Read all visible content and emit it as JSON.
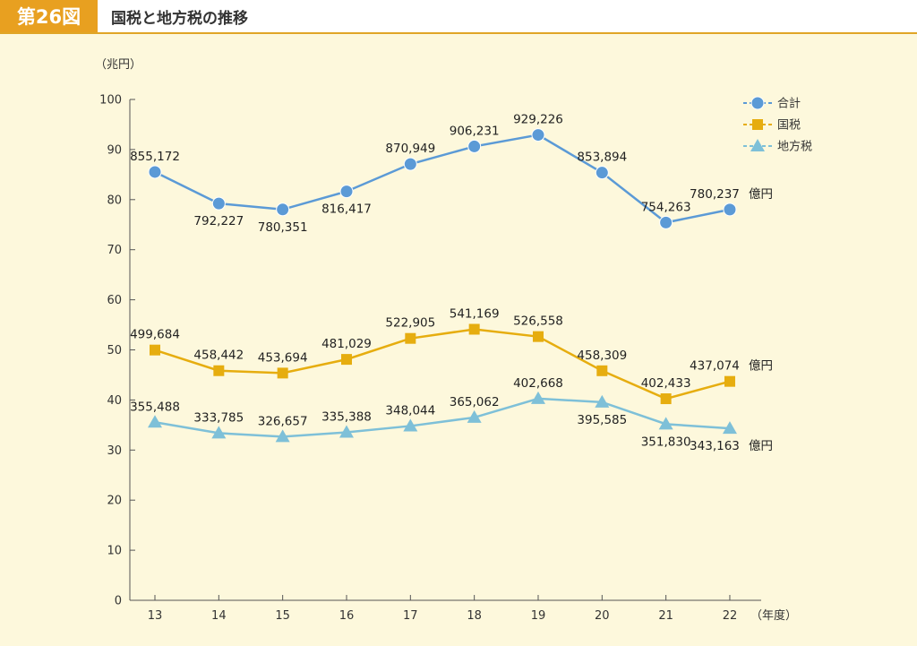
{
  "header": {
    "figure_number": "第26図",
    "title": "国税と地方税の推移"
  },
  "chart_data": {
    "type": "line",
    "title": "国税と地方税の推移",
    "ylabel": "（兆円）",
    "xlabel": "（年度）",
    "ylim": [
      0,
      100
    ],
    "yticks": [
      0,
      10,
      20,
      30,
      40,
      50,
      60,
      70,
      80,
      90,
      100
    ],
    "categories": [
      "13",
      "14",
      "15",
      "16",
      "17",
      "18",
      "19",
      "20",
      "21",
      "22"
    ],
    "legend_position": "top-right",
    "grid": false,
    "series": [
      {
        "name": "合計",
        "color": "#5b9ad6",
        "marker": "circle",
        "values": [
          85.5172,
          79.2227,
          78.0351,
          81.6417,
          87.0949,
          90.6231,
          92.9226,
          85.3894,
          75.4263,
          78.0237
        ],
        "labels": [
          "855,172",
          "792,227",
          "780,351",
          "816,417",
          "870,949",
          "906,231",
          "929,226",
          "853,894",
          "754,263",
          "780,237"
        ],
        "end_suffix": "億円"
      },
      {
        "name": "国税",
        "color": "#e6ad0f",
        "marker": "square",
        "values": [
          49.9684,
          45.8442,
          45.3694,
          48.1029,
          52.2905,
          54.1169,
          52.6558,
          45.8309,
          40.2433,
          43.7074
        ],
        "labels": [
          "499,684",
          "458,442",
          "453,694",
          "481,029",
          "522,905",
          "541,169",
          "526,558",
          "458,309",
          "402,433",
          "437,074"
        ],
        "end_suffix": "億円"
      },
      {
        "name": "地方税",
        "color": "#7ec0d8",
        "marker": "triangle",
        "values": [
          35.5488,
          33.3785,
          32.6657,
          33.5388,
          34.8044,
          36.5062,
          40.2668,
          39.5585,
          35.183,
          34.3163
        ],
        "labels": [
          "355,488",
          "333,785",
          "326,657",
          "335,388",
          "348,044",
          "365,062",
          "402,668",
          "395,585",
          "351,830",
          "343,163"
        ],
        "end_suffix": "億円"
      }
    ]
  }
}
